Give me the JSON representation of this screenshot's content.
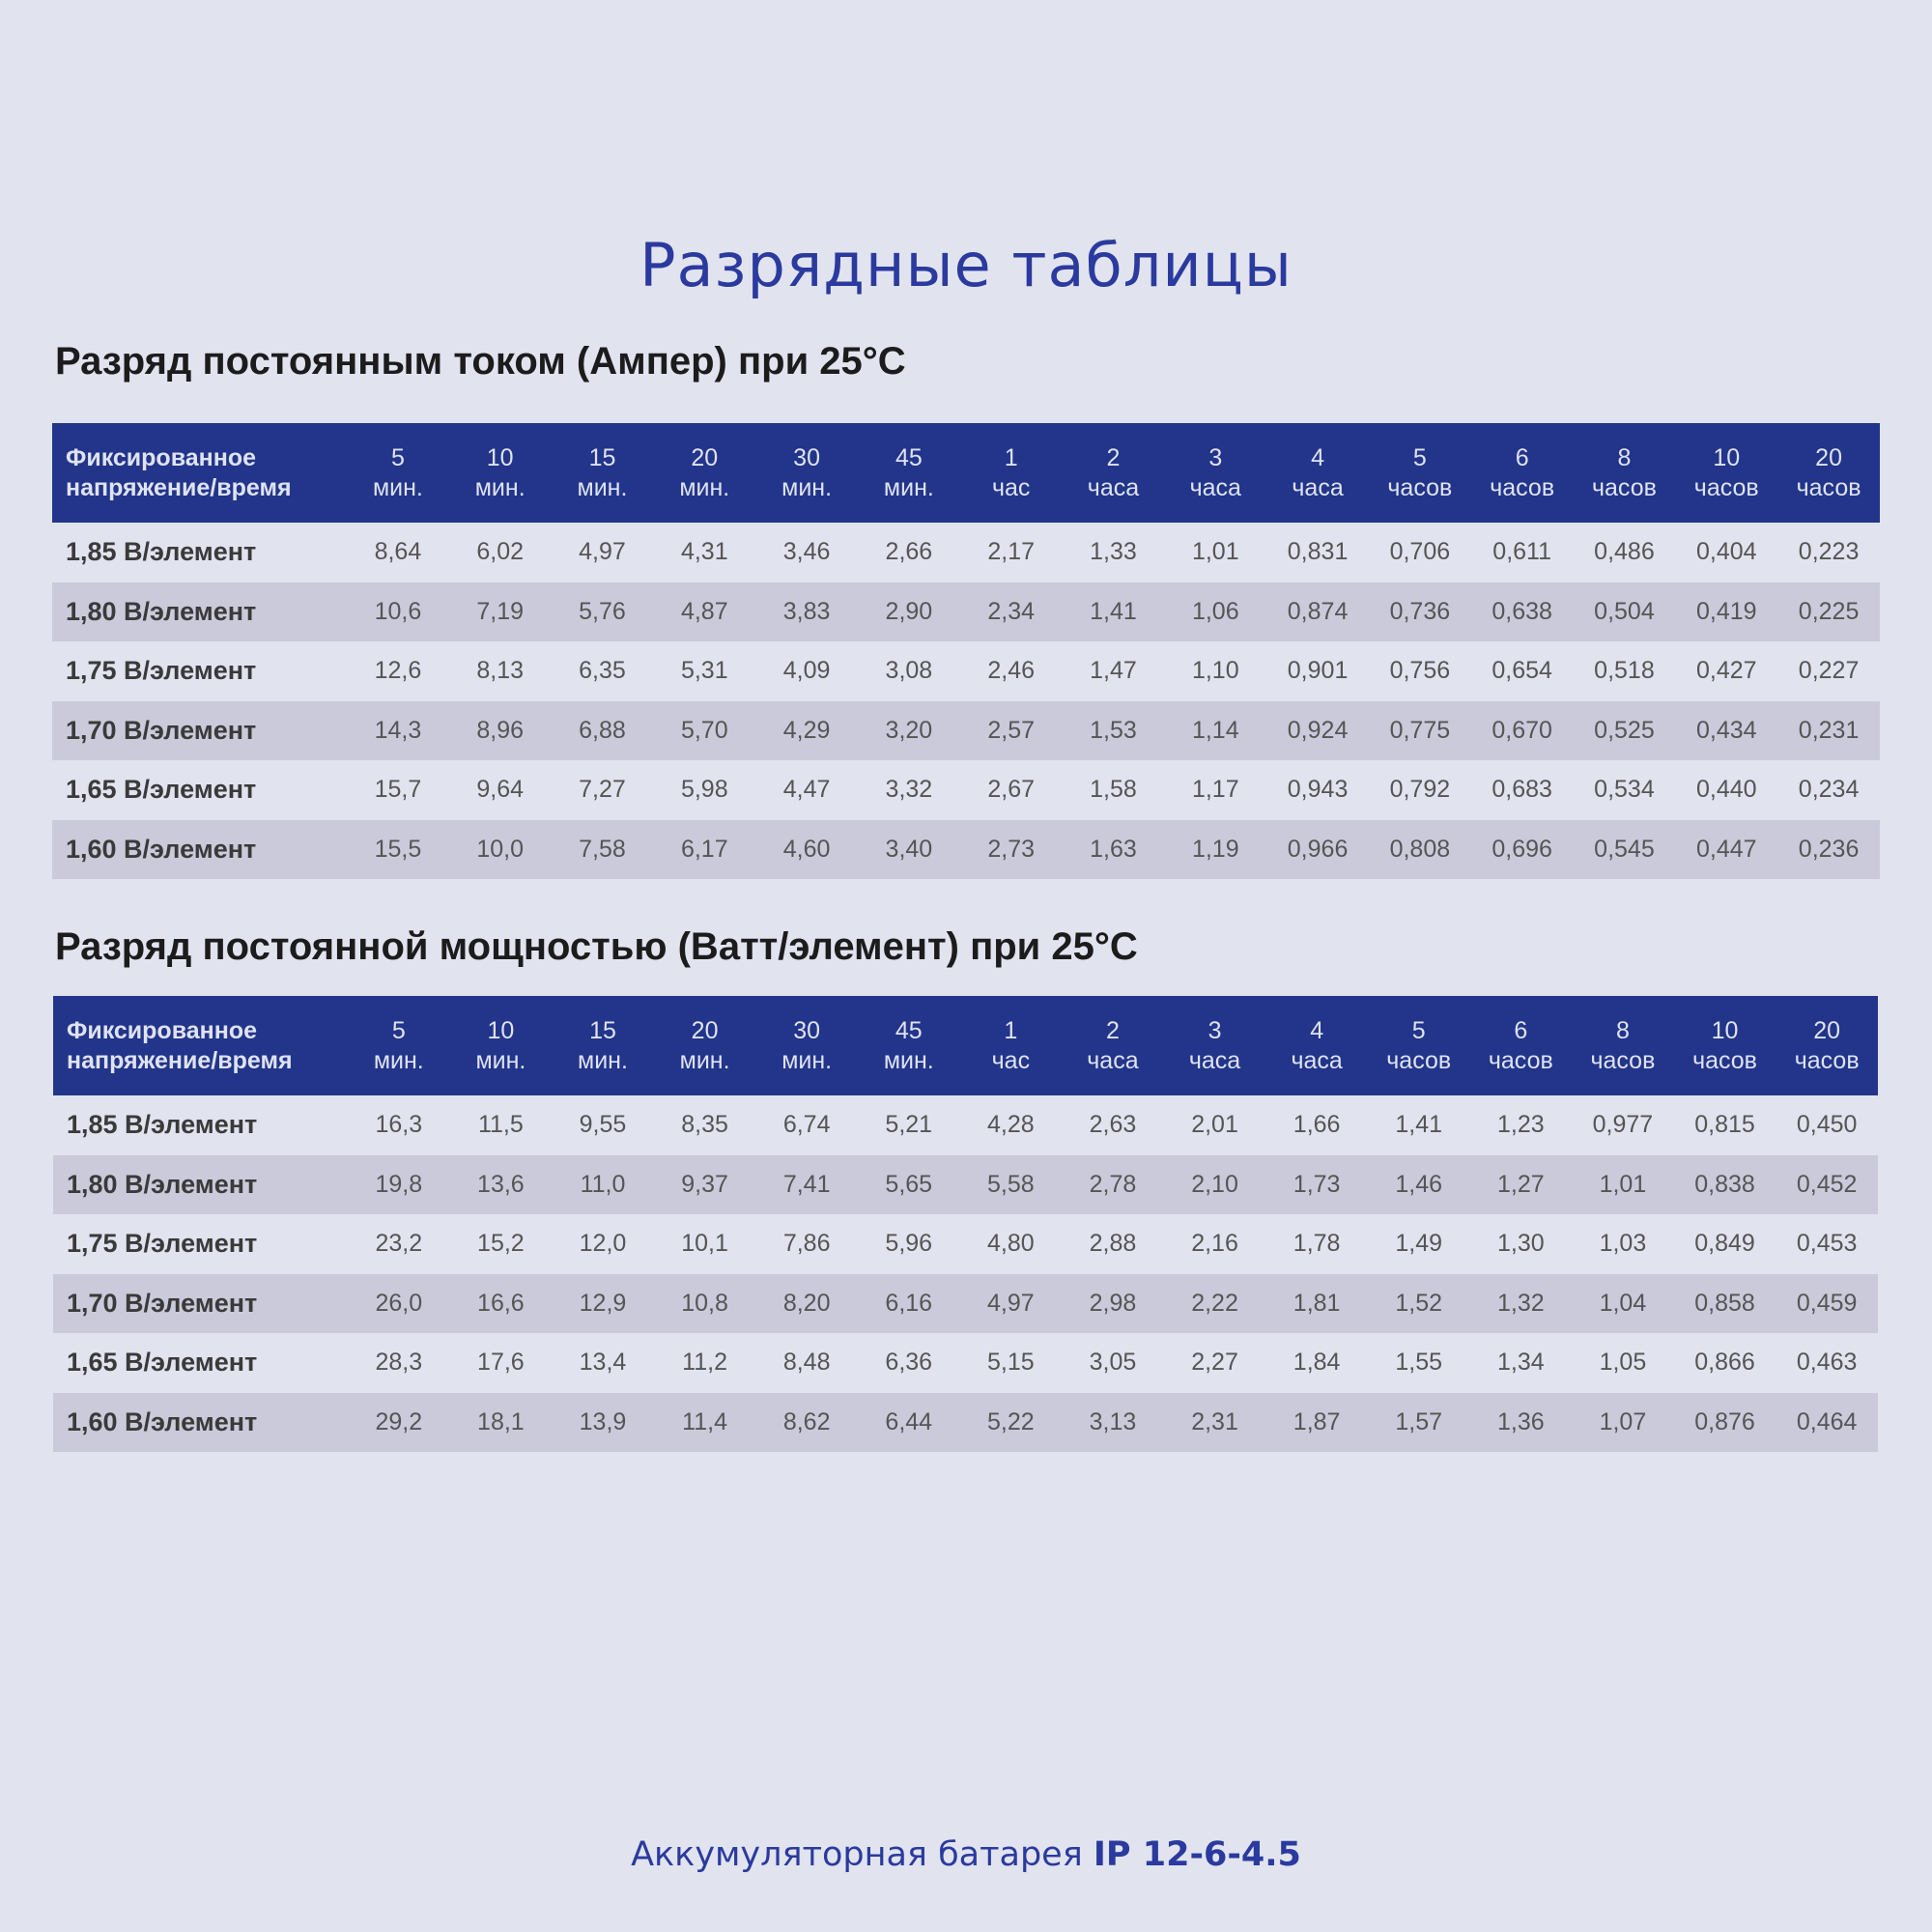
{
  "title": "Разрядные таблицы",
  "colors": {
    "header_bg": "#22358a",
    "accent": "#2a3a9e",
    "stripe": "#cbcadb",
    "background": "#e1e3ef"
  },
  "columns": {
    "first": [
      "Фиксированное",
      "напряжение/время"
    ],
    "times": [
      [
        "5",
        "мин."
      ],
      [
        "10",
        "мин."
      ],
      [
        "15",
        "мин."
      ],
      [
        "20",
        "мин."
      ],
      [
        "30",
        "мин."
      ],
      [
        "45",
        "мин."
      ],
      [
        "1",
        "час"
      ],
      [
        "2",
        "часа"
      ],
      [
        "3",
        "часа"
      ],
      [
        "4",
        "часа"
      ],
      [
        "5",
        "часов"
      ],
      [
        "6",
        "часов"
      ],
      [
        "8",
        "часов"
      ],
      [
        "10",
        "часов"
      ],
      [
        "20",
        "часов"
      ]
    ]
  },
  "tables": [
    {
      "heading": "Разряд постоянным током (Ампер) при 25°C",
      "rows": [
        {
          "label": "1,85 В/элемент",
          "values": [
            "8,64",
            "6,02",
            "4,97",
            "4,31",
            "3,46",
            "2,66",
            "2,17",
            "1,33",
            "1,01",
            "0,831",
            "0,706",
            "0,611",
            "0,486",
            "0,404",
            "0,223"
          ]
        },
        {
          "label": "1,80 В/элемент",
          "values": [
            "10,6",
            "7,19",
            "5,76",
            "4,87",
            "3,83",
            "2,90",
            "2,34",
            "1,41",
            "1,06",
            "0,874",
            "0,736",
            "0,638",
            "0,504",
            "0,419",
            "0,225"
          ]
        },
        {
          "label": "1,75 В/элемент",
          "values": [
            "12,6",
            "8,13",
            "6,35",
            "5,31",
            "4,09",
            "3,08",
            "2,46",
            "1,47",
            "1,10",
            "0,901",
            "0,756",
            "0,654",
            "0,518",
            "0,427",
            "0,227"
          ]
        },
        {
          "label": "1,70 В/элемент",
          "values": [
            "14,3",
            "8,96",
            "6,88",
            "5,70",
            "4,29",
            "3,20",
            "2,57",
            "1,53",
            "1,14",
            "0,924",
            "0,775",
            "0,670",
            "0,525",
            "0,434",
            "0,231"
          ]
        },
        {
          "label": "1,65 В/элемент",
          "values": [
            "15,7",
            "9,64",
            "7,27",
            "5,98",
            "4,47",
            "3,32",
            "2,67",
            "1,58",
            "1,17",
            "0,943",
            "0,792",
            "0,683",
            "0,534",
            "0,440",
            "0,234"
          ]
        },
        {
          "label": "1,60 В/элемент",
          "values": [
            "15,5",
            "10,0",
            "7,58",
            "6,17",
            "4,60",
            "3,40",
            "2,73",
            "1,63",
            "1,19",
            "0,966",
            "0,808",
            "0,696",
            "0,545",
            "0,447",
            "0,236"
          ]
        }
      ]
    },
    {
      "heading": "Разряд постоянной мощностью (Ватт/элемент) при 25°C",
      "rows": [
        {
          "label": "1,85 В/элемент",
          "values": [
            "16,3",
            "11,5",
            "9,55",
            "8,35",
            "6,74",
            "5,21",
            "4,28",
            "2,63",
            "2,01",
            "1,66",
            "1,41",
            "1,23",
            "0,977",
            "0,815",
            "0,450"
          ]
        },
        {
          "label": "1,80 В/элемент",
          "values": [
            "19,8",
            "13,6",
            "11,0",
            "9,37",
            "7,41",
            "5,65",
            "5,58",
            "2,78",
            "2,10",
            "1,73",
            "1,46",
            "1,27",
            "1,01",
            "0,838",
            "0,452"
          ]
        },
        {
          "label": "1,75 В/элемент",
          "values": [
            "23,2",
            "15,2",
            "12,0",
            "10,1",
            "7,86",
            "5,96",
            "4,80",
            "2,88",
            "2,16",
            "1,78",
            "1,49",
            "1,30",
            "1,03",
            "0,849",
            "0,453"
          ]
        },
        {
          "label": "1,70 В/элемент",
          "values": [
            "26,0",
            "16,6",
            "12,9",
            "10,8",
            "8,20",
            "6,16",
            "4,97",
            "2,98",
            "2,22",
            "1,81",
            "1,52",
            "1,32",
            "1,04",
            "0,858",
            "0,459"
          ]
        },
        {
          "label": "1,65 В/элемент",
          "values": [
            "28,3",
            "17,6",
            "13,4",
            "11,2",
            "8,48",
            "6,36",
            "5,15",
            "3,05",
            "2,27",
            "1,84",
            "1,55",
            "1,34",
            "1,05",
            "0,866",
            "0,463"
          ]
        },
        {
          "label": "1,60 В/элемент",
          "values": [
            "29,2",
            "18,1",
            "13,9",
            "11,4",
            "8,62",
            "6,44",
            "5,22",
            "3,13",
            "2,31",
            "1,87",
            "1,57",
            "1,36",
            "1,07",
            "0,876",
            "0,464"
          ]
        }
      ]
    }
  ],
  "footer": {
    "prefix": "Аккумуляторная батарея ",
    "model": "IP 12-6-4.5"
  }
}
